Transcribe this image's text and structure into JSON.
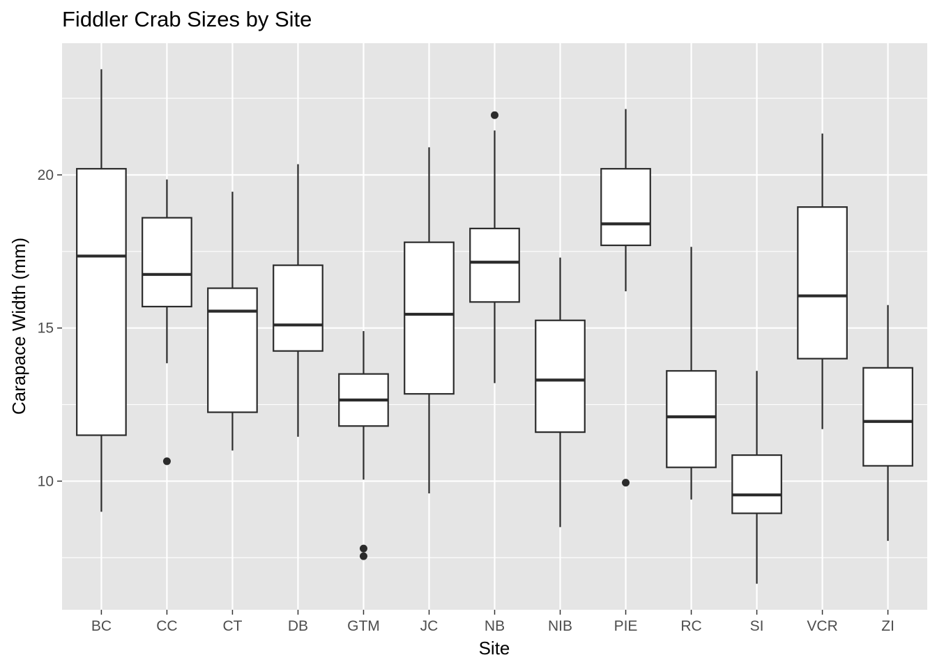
{
  "chart_data": {
    "type": "boxplot",
    "title": "Fiddler Crab Sizes by Site",
    "xlabel": "Site",
    "ylabel": "Carapace Width (mm)",
    "ylim": [
      5.8,
      24.3
    ],
    "yticks": [
      10,
      15,
      20
    ],
    "grid": true,
    "legend": "none",
    "colors": {
      "panel": "#e5e5e5",
      "grid": "#ffffff",
      "box_fill": "#ffffff",
      "box_line": "#2b2b2b",
      "tick_text": "#4d4d4d"
    },
    "categories": [
      "BC",
      "CC",
      "CT",
      "DB",
      "GTM",
      "JC",
      "NB",
      "NIB",
      "PIE",
      "RC",
      "SI",
      "VCR",
      "ZI"
    ],
    "boxes": [
      {
        "site": "BC",
        "lower": 9.0,
        "q1": 11.5,
        "median": 17.35,
        "q3": 20.2,
        "upper": 23.45,
        "outliers": []
      },
      {
        "site": "CC",
        "lower": 13.85,
        "q1": 15.7,
        "median": 16.75,
        "q3": 18.6,
        "upper": 19.85,
        "outliers": [
          10.65
        ]
      },
      {
        "site": "CT",
        "lower": 11.0,
        "q1": 12.25,
        "median": 15.55,
        "q3": 16.3,
        "upper": 19.45,
        "outliers": []
      },
      {
        "site": "DB",
        "lower": 11.45,
        "q1": 14.25,
        "median": 15.1,
        "q3": 17.05,
        "upper": 20.35,
        "outliers": []
      },
      {
        "site": "GTM",
        "lower": 10.05,
        "q1": 11.8,
        "median": 12.65,
        "q3": 13.5,
        "upper": 14.9,
        "outliers": [
          7.8,
          7.55
        ]
      },
      {
        "site": "JC",
        "lower": 9.6,
        "q1": 12.85,
        "median": 15.45,
        "q3": 17.8,
        "upper": 20.9,
        "outliers": []
      },
      {
        "site": "NB",
        "lower": 13.2,
        "q1": 15.85,
        "median": 17.15,
        "q3": 18.25,
        "upper": 21.45,
        "outliers": [
          21.95
        ]
      },
      {
        "site": "NIB",
        "lower": 8.5,
        "q1": 11.6,
        "median": 13.3,
        "q3": 15.25,
        "upper": 17.3,
        "outliers": []
      },
      {
        "site": "PIE",
        "lower": 16.2,
        "q1": 17.7,
        "median": 18.4,
        "q3": 20.2,
        "upper": 22.15,
        "outliers": [
          9.95
        ]
      },
      {
        "site": "RC",
        "lower": 9.4,
        "q1": 10.45,
        "median": 12.1,
        "q3": 13.6,
        "upper": 17.65,
        "outliers": []
      },
      {
        "site": "SI",
        "lower": 6.65,
        "q1": 8.95,
        "median": 9.55,
        "q3": 10.85,
        "upper": 13.6,
        "outliers": []
      },
      {
        "site": "VCR",
        "lower": 11.7,
        "q1": 14.0,
        "median": 16.05,
        "q3": 18.95,
        "upper": 21.35,
        "outliers": []
      },
      {
        "site": "ZI",
        "lower": 8.05,
        "q1": 10.5,
        "median": 11.95,
        "q3": 13.7,
        "upper": 15.75,
        "outliers": []
      }
    ]
  }
}
